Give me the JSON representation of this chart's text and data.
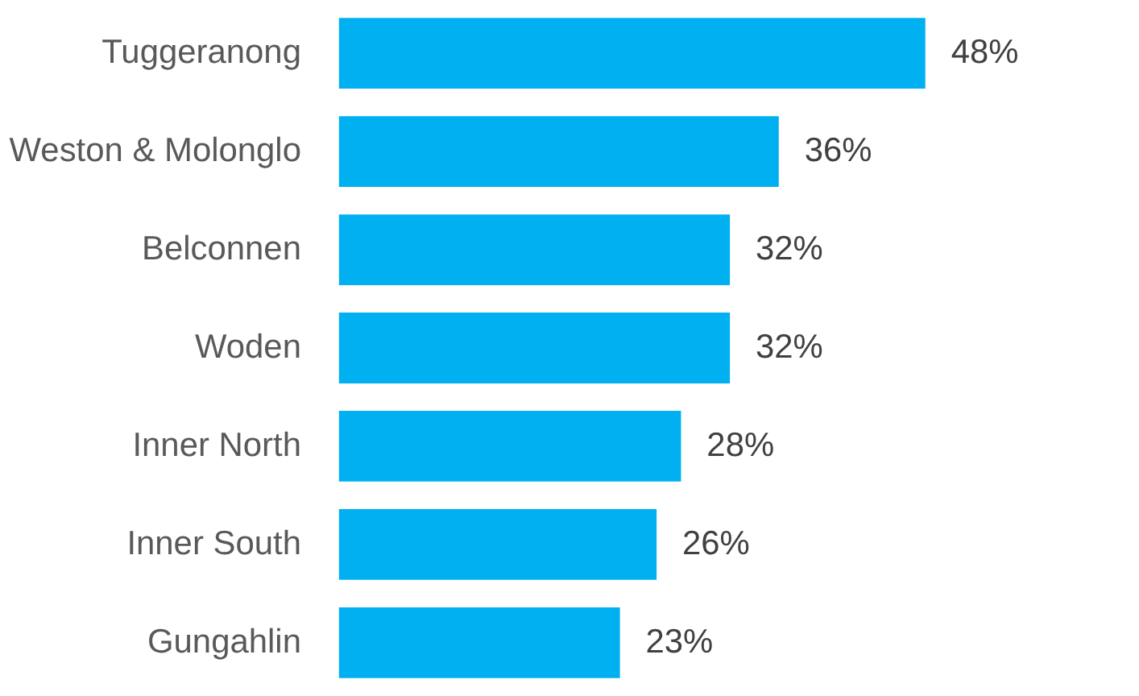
{
  "chart_data": {
    "type": "bar",
    "orientation": "horizontal",
    "color": "#00b0f0",
    "categories": [
      "Tuggeranong",
      "Weston & Molonglo",
      "Belconnen",
      "Woden",
      "Inner North",
      "Inner South",
      "Gungahlin"
    ],
    "values": [
      48,
      36,
      32,
      32,
      28,
      26,
      23
    ],
    "value_labels": [
      "48%",
      "36%",
      "32%",
      "32%",
      "28%",
      "26%",
      "23%"
    ]
  }
}
